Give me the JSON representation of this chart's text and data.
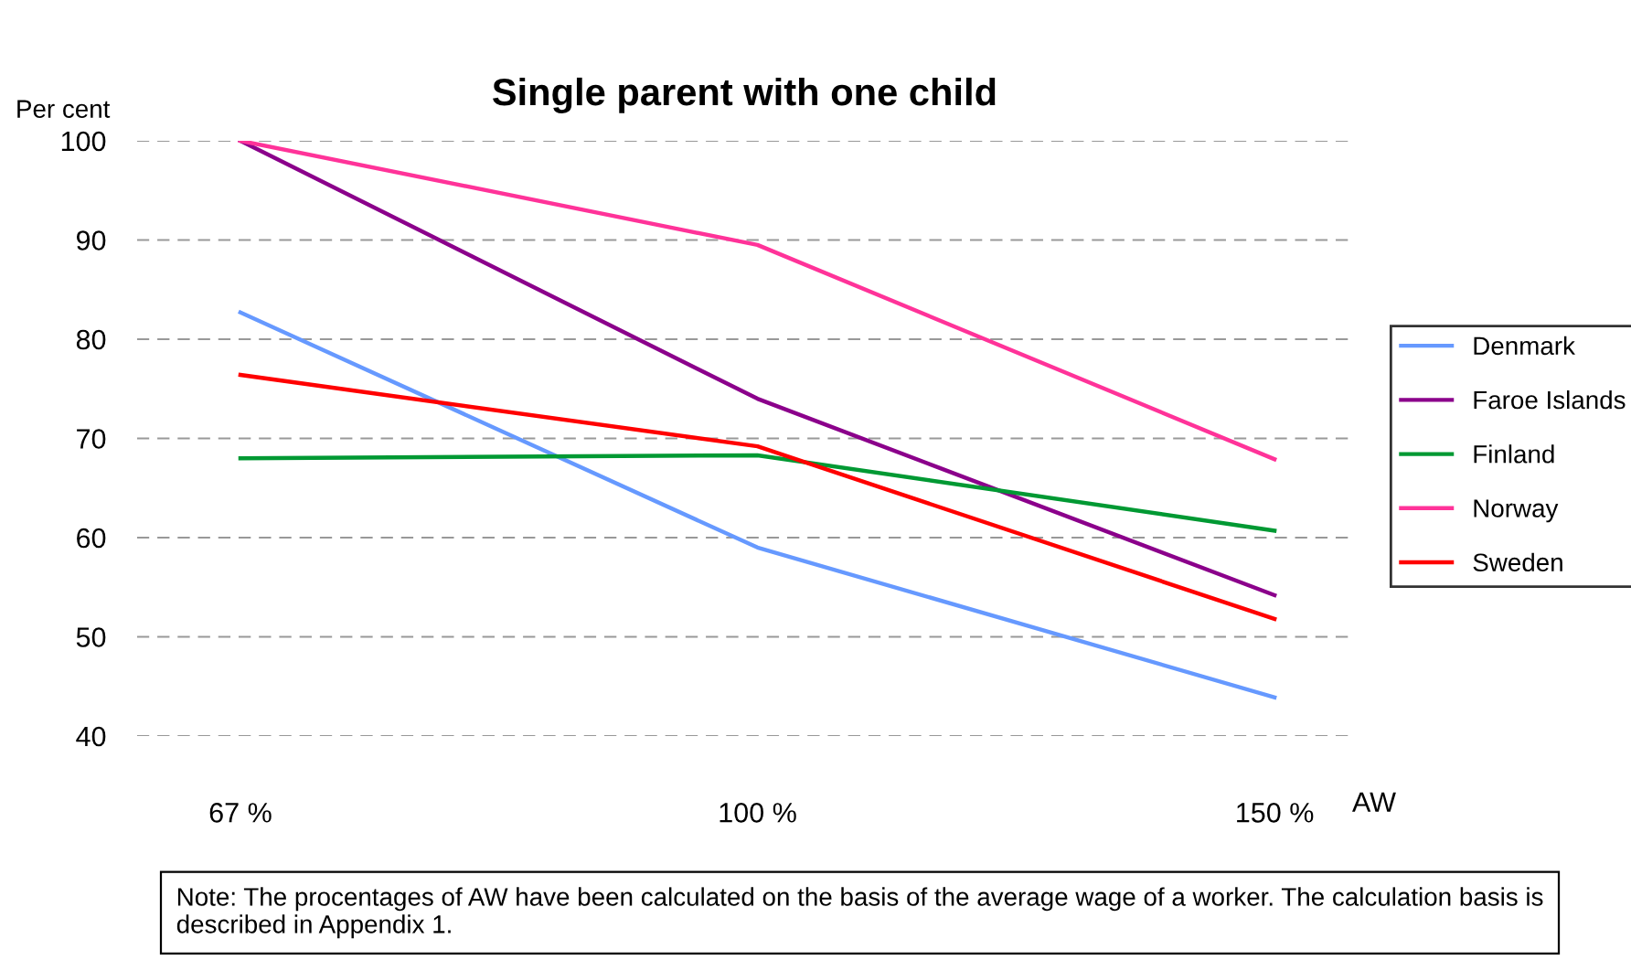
{
  "chart_data": {
    "type": "line",
    "title": "Single parent with one child",
    "ylabel": "Per cent",
    "xlabel": "AW",
    "categories": [
      "67 %",
      "100 %",
      "150 %"
    ],
    "series": [
      {
        "name": "Denmark",
        "color": "#6699ff",
        "values": [
          82.7,
          59.0,
          43.9
        ]
      },
      {
        "name": "Faroe Islands",
        "color": "#8b008b",
        "values": [
          100,
          74.0,
          54.2
        ]
      },
      {
        "name": "Finland",
        "color": "#009933",
        "values": [
          68.0,
          68.3,
          60.7
        ]
      },
      {
        "name": "Norway",
        "color": "#ff3399",
        "values": [
          100,
          89.5,
          67.9
        ]
      },
      {
        "name": "Sweden",
        "color": "#ff0000",
        "values": [
          76.4,
          69.2,
          51.8
        ]
      }
    ],
    "ylim": [
      40,
      100
    ],
    "yticks": [
      40,
      50,
      60,
      70,
      80,
      90,
      100
    ],
    "grid": "y",
    "legend": "right",
    "marker": "none",
    "line_style": "solid",
    "annotations": [
      "Note: The procentages of AW have been calculated on the basis of the average wage of a worker. The calculation basis is described in Appendix 1."
    ]
  }
}
